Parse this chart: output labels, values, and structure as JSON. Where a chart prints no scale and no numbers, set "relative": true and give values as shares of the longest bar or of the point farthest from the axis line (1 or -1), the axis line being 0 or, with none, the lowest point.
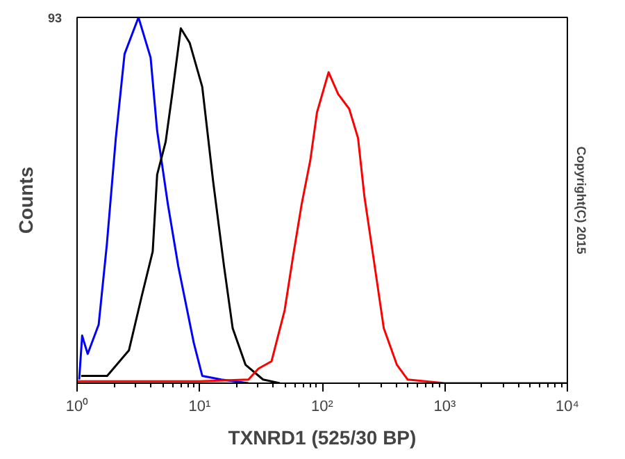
{
  "chart_data": {
    "type": "line",
    "relative": true,
    "xlabel": "TXNRD1 (525/30 BP)",
    "ylabel": "Counts",
    "log": "x",
    "grid": false,
    "marker": "none",
    "line_style": "solid",
    "annotations": [
      "93",
      "Copyright(C) 2015"
    ],
    "xlim": [
      1,
      10000
    ],
    "xticks": [
      {
        "value": 1,
        "label": "10⁰"
      },
      {
        "value": 2,
        "label": null
      },
      {
        "value": 3,
        "label": null
      },
      {
        "value": 4,
        "label": null
      },
      {
        "value": 5,
        "label": null
      },
      {
        "value": 6,
        "label": null
      },
      {
        "value": 7,
        "label": null
      },
      {
        "value": 8,
        "label": null
      },
      {
        "value": 9,
        "label": null
      },
      {
        "value": 10,
        "label": "10¹"
      },
      {
        "value": 20,
        "label": null
      },
      {
        "value": 30,
        "label": null
      },
      {
        "value": 40,
        "label": null
      },
      {
        "value": 50,
        "label": null
      },
      {
        "value": 60,
        "label": null
      },
      {
        "value": 70,
        "label": null
      },
      {
        "value": 80,
        "label": null
      },
      {
        "value": 90,
        "label": null
      },
      {
        "value": 100,
        "label": "10²"
      },
      {
        "value": 200,
        "label": null
      },
      {
        "value": 300,
        "label": null
      },
      {
        "value": 400,
        "label": null
      },
      {
        "value": 500,
        "label": null
      },
      {
        "value": 600,
        "label": null
      },
      {
        "value": 700,
        "label": null
      },
      {
        "value": 800,
        "label": null
      },
      {
        "value": 900,
        "label": null
      },
      {
        "value": 1000,
        "label": "10³"
      },
      {
        "value": 2000,
        "label": null
      },
      {
        "value": 3000,
        "label": null
      },
      {
        "value": 4000,
        "label": null
      },
      {
        "value": 5000,
        "label": null
      },
      {
        "value": 6000,
        "label": null
      },
      {
        "value": 7000,
        "label": null
      },
      {
        "value": 8000,
        "label": null
      },
      {
        "value": 9000,
        "label": null
      },
      {
        "value": 10000,
        "label": "10⁴"
      }
    ],
    "series": [
      {
        "color": "#0000ff",
        "x": [
          1.04,
          1.1,
          1.22,
          1.5,
          1.75,
          2.07,
          2.44,
          3.17,
          3.98,
          4.5,
          5.5,
          6.69,
          8.96,
          10.5,
          15,
          25
        ],
        "values": [
          0.01,
          0.13,
          0.08,
          0.16,
          0.38,
          0.67,
          0.9,
          1.0,
          0.89,
          0.69,
          0.49,
          0.32,
          0.11,
          0.02,
          0.01,
          0
        ]
      },
      {
        "color": "#000000",
        "x": [
          1.08,
          1.76,
          2.65,
          3.38,
          4.14,
          4.5,
          5.28,
          5.97,
          7.02,
          8.3,
          10.5,
          12.9,
          15.8,
          18.6,
          23.7,
          32.9,
          45
        ],
        "values": [
          0.02,
          0.02,
          0.09,
          0.24,
          0.36,
          0.57,
          0.66,
          0.79,
          0.97,
          0.93,
          0.81,
          0.55,
          0.32,
          0.15,
          0.05,
          0.01,
          0
        ]
      },
      {
        "color": "#ff0000",
        "x": [
          1,
          10,
          25,
          30.2,
          38.6,
          49.4,
          58,
          68,
          80,
          90.6,
          112.7,
          135,
          166,
          196,
          221,
          260,
          318,
          407,
          497,
          1000,
          10000
        ],
        "values": [
          0.005,
          0.005,
          0.01,
          0.04,
          0.06,
          0.2,
          0.35,
          0.49,
          0.61,
          0.74,
          0.85,
          0.79,
          0.75,
          0.67,
          0.51,
          0.35,
          0.15,
          0.05,
          0.01,
          0,
          0
        ]
      }
    ]
  }
}
